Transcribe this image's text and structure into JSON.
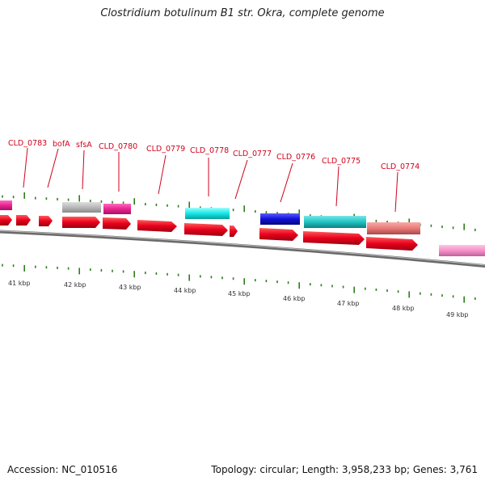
{
  "title": "Clostridium botulinum B1 str. Okra, complete genome",
  "footer": {
    "accession": "Accession: NC_010516",
    "summary": "Topology: circular; Length: 3,958,233 bp; Genes: 3,761"
  },
  "map": {
    "scale_labels": [
      "41 kbp",
      "42 kbp",
      "43 kbp",
      "44 kbp",
      "45 kbp",
      "46 kbp",
      "47 kbp",
      "48 kbp",
      "49 kbp"
    ],
    "gene_labels": [
      "CLD_0783",
      "bofA",
      "sfsA",
      "CLD_0780",
      "CLD_0779",
      "CLD_0778",
      "CLD_0777",
      "CLD_0776",
      "CLD_0775",
      "CLD_0774"
    ],
    "colors": {
      "cds": "#e8001c",
      "backbone": "#808080",
      "tick": "#2e7d1e",
      "label": "#d0021b",
      "magenta": "#e8258f",
      "gray": "#b8b8b8",
      "cyan": "#14e8e8",
      "blue": "#1010d8",
      "teal": "#20c4c4",
      "salmon": "#e87a78",
      "pink": "#f590c8"
    }
  }
}
